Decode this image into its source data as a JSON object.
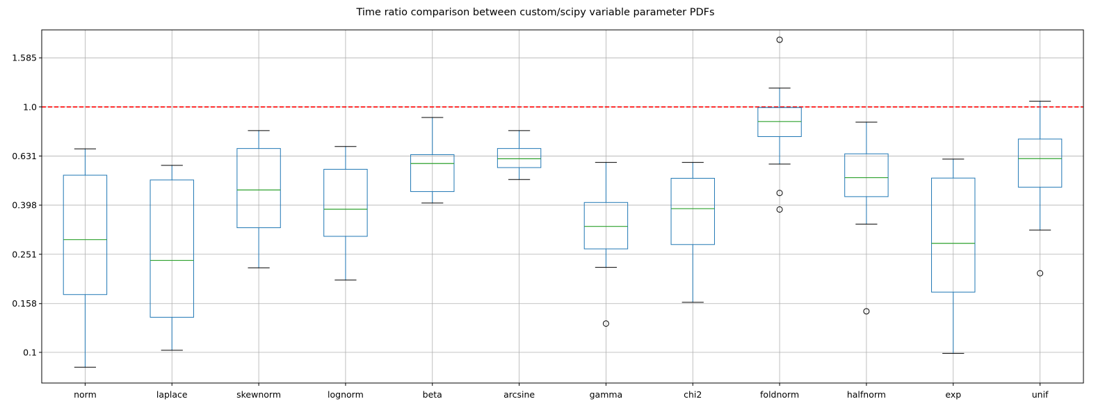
{
  "chart_data": {
    "type": "box",
    "title": "Time ratio comparison between custom/scipy variable parameter PDFs",
    "xlabel": "",
    "ylabel": "",
    "yscale": "log",
    "ylim": [
      0.075,
      2.06
    ],
    "yticks": [
      {
        "value": 0.1,
        "label": "0.1"
      },
      {
        "value": 0.158,
        "label": "0.158"
      },
      {
        "value": 0.251,
        "label": "0.251"
      },
      {
        "value": 0.398,
        "label": "0.398"
      },
      {
        "value": 0.631,
        "label": "0.631"
      },
      {
        "value": 1.0,
        "label": "1.0"
      },
      {
        "value": 1.585,
        "label": "1.585"
      }
    ],
    "grid": true,
    "reference_line": {
      "value": 1.0,
      "color": "#ff0000",
      "style": "dashed"
    },
    "colors": {
      "box": "#1f77b4",
      "median": "#2ca02c",
      "whisker_cap": "#000000",
      "grid": "#b0b0b0",
      "reference": "#ff0000"
    },
    "categories": [
      "norm",
      "laplace",
      "skewnorm",
      "lognorm",
      "beta",
      "arcsine",
      "gamma",
      "chi2",
      "foldnorm",
      "halfnorm",
      "exp",
      "unif"
    ],
    "boxes": [
      {
        "label": "norm",
        "whislo": 0.087,
        "q1": 0.172,
        "median": 0.288,
        "q3": 0.527,
        "whishi": 0.675,
        "fliers": []
      },
      {
        "label": "laplace",
        "whislo": 0.102,
        "q1": 0.139,
        "median": 0.237,
        "q3": 0.504,
        "whishi": 0.578,
        "fliers": []
      },
      {
        "label": "skewnorm",
        "whislo": 0.221,
        "q1": 0.322,
        "median": 0.459,
        "q3": 0.677,
        "whishi": 0.801,
        "fliers": []
      },
      {
        "label": "lognorm",
        "whislo": 0.197,
        "q1": 0.297,
        "median": 0.383,
        "q3": 0.557,
        "whishi": 0.69,
        "fliers": []
      },
      {
        "label": "beta",
        "whislo": 0.406,
        "q1": 0.452,
        "median": 0.588,
        "q3": 0.639,
        "whishi": 0.906,
        "fliers": []
      },
      {
        "label": "arcsine",
        "whislo": 0.506,
        "q1": 0.566,
        "median": 0.615,
        "q3": 0.677,
        "whishi": 0.801,
        "fliers": []
      },
      {
        "label": "gamma",
        "whislo": 0.222,
        "q1": 0.264,
        "median": 0.326,
        "q3": 0.408,
        "whishi": 0.594,
        "fliers": [
          0.131
        ]
      },
      {
        "label": "chi2",
        "whislo": 0.16,
        "q1": 0.275,
        "median": 0.385,
        "q3": 0.512,
        "whishi": 0.594,
        "fliers": []
      },
      {
        "label": "foldnorm",
        "whislo": 0.585,
        "q1": 0.757,
        "median": 0.872,
        "q3": 0.994,
        "whishi": 1.193,
        "fliers": [
          1.878,
          0.446,
          0.382
        ]
      },
      {
        "label": "halfnorm",
        "whislo": 0.333,
        "q1": 0.431,
        "median": 0.515,
        "q3": 0.644,
        "whishi": 0.867,
        "fliers": [
          0.147
        ]
      },
      {
        "label": "exp",
        "whislo": 0.099,
        "q1": 0.176,
        "median": 0.278,
        "q3": 0.513,
        "whishi": 0.613,
        "fliers": []
      },
      {
        "label": "unif",
        "whislo": 0.315,
        "q1": 0.471,
        "median": 0.616,
        "q3": 0.74,
        "whishi": 1.055,
        "fliers": [
          0.21
        ]
      }
    ]
  }
}
